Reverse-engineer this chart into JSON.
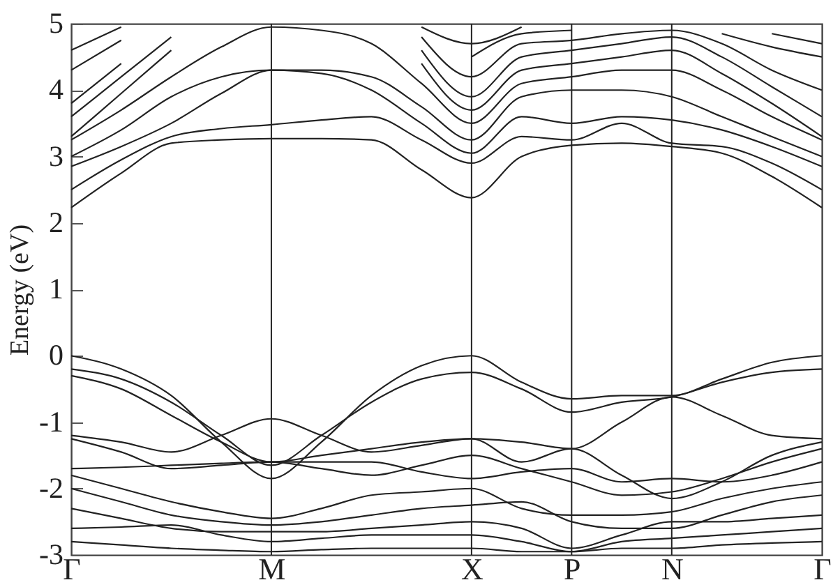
{
  "chart_data": {
    "type": "line",
    "ylabel": "Energy (eV)",
    "categories": [
      "Γ",
      null,
      null,
      null,
      "M",
      null,
      null,
      null,
      "X",
      null,
      "P",
      null,
      "N",
      null,
      null,
      "Γ"
    ],
    "ylim": [
      -3,
      5
    ],
    "yticks": [
      -3,
      -2,
      -1,
      0,
      1,
      2,
      3,
      4,
      5
    ],
    "grid": false,
    "legend": false,
    "marker": "none",
    "line_style": "solid",
    "ref_lines": [
      {
        "axis": "x",
        "value": "M",
        "color": "#222222"
      },
      {
        "axis": "x",
        "value": "X",
        "color": "#222222"
      },
      {
        "axis": "x",
        "value": "P",
        "color": "#222222"
      },
      {
        "axis": "x",
        "value": "N",
        "color": "#222222"
      }
    ],
    "series": [
      {
        "color": "#222222",
        "values": [
          2.23,
          2.75,
          3.2,
          3.25,
          3.27,
          3.27,
          3.25,
          2.8,
          2.38,
          3.0,
          3.17,
          3.2,
          3.15,
          3.05,
          2.7,
          2.23
        ]
      },
      {
        "color": "#222222",
        "values": [
          2.5,
          2.95,
          3.3,
          3.42,
          3.48,
          3.55,
          3.6,
          3.25,
          2.9,
          3.3,
          3.25,
          3.5,
          3.2,
          3.15,
          2.9,
          2.5
        ]
      },
      {
        "color": "#222222",
        "values": [
          2.85,
          3.15,
          3.5,
          3.95,
          4.3,
          4.25,
          4.0,
          3.5,
          3.05,
          3.6,
          3.5,
          3.6,
          3.55,
          3.4,
          3.15,
          2.85
        ]
      },
      {
        "color": "#222222",
        "values": [
          3.0,
          3.4,
          3.9,
          4.2,
          4.3,
          4.3,
          4.2,
          3.75,
          3.25,
          3.9,
          4.0,
          4.0,
          3.9,
          3.6,
          3.3,
          3.0
        ]
      },
      {
        "color": "#222222",
        "values": [
          3.25,
          3.7,
          4.2,
          4.65,
          4.95,
          4.9,
          4.7,
          4.1,
          3.5,
          4.1,
          4.2,
          4.3,
          4.3,
          4.0,
          3.6,
          3.25
        ]
      },
      {
        "color": "#222222",
        "values": [
          3.3,
          3.95,
          4.6,
          null,
          null,
          null,
          null,
          4.4,
          3.7,
          4.3,
          4.4,
          4.5,
          4.6,
          4.25,
          3.8,
          3.3
        ]
      },
      {
        "color": "#222222",
        "values": [
          3.6,
          4.2,
          4.8,
          null,
          null,
          null,
          null,
          4.6,
          3.9,
          4.5,
          4.6,
          4.7,
          4.8,
          4.5,
          4.05,
          3.6
        ]
      },
      {
        "color": "#222222",
        "values": [
          3.8,
          4.4,
          null,
          null,
          null,
          null,
          null,
          4.8,
          4.2,
          4.7,
          4.75,
          4.85,
          4.9,
          4.7,
          4.3,
          4.0
        ]
      },
      {
        "color": "#222222",
        "values": [
          4.3,
          4.75,
          null,
          null,
          null,
          null,
          null,
          null,
          4.5,
          4.85,
          4.9,
          null,
          null,
          4.85,
          4.65,
          4.5
        ]
      },
      {
        "color": "#222222",
        "values": [
          4.6,
          4.95,
          null,
          null,
          null,
          null,
          null,
          4.95,
          4.7,
          4.95,
          null,
          null,
          null,
          null,
          4.85,
          4.7
        ]
      },
      {
        "color": "#222222",
        "values": [
          0.0,
          -0.2,
          -0.6,
          -1.3,
          -1.85,
          -1.3,
          -0.6,
          -0.15,
          0.0,
          -0.4,
          -0.65,
          -0.6,
          -0.6,
          -0.35,
          -0.1,
          0.0
        ]
      },
      {
        "color": "#222222",
        "values": [
          -0.2,
          -0.35,
          -0.7,
          -1.2,
          -1.65,
          -1.2,
          -0.7,
          -0.35,
          -0.25,
          -0.5,
          -0.85,
          -0.7,
          -0.62,
          -0.4,
          -0.25,
          -0.2
        ]
      },
      {
        "color": "#222222",
        "values": [
          -0.3,
          -0.5,
          -0.9,
          -1.3,
          -1.6,
          -1.5,
          -1.4,
          -1.3,
          -1.25,
          -1.3,
          -1.4,
          -1.0,
          -0.62,
          -0.9,
          -1.2,
          -1.25
        ]
      },
      {
        "color": "#222222",
        "values": [
          -1.2,
          -1.3,
          -1.45,
          -1.2,
          -0.95,
          -1.2,
          -1.45,
          -1.35,
          -1.25,
          -1.6,
          -1.4,
          -1.8,
          -2.15,
          -1.9,
          -1.5,
          -1.3
        ]
      },
      {
        "color": "#222222",
        "values": [
          -1.25,
          -1.45,
          -1.7,
          -1.65,
          -1.6,
          -1.7,
          -1.8,
          -1.65,
          -1.5,
          -1.7,
          -1.9,
          -2.1,
          -2.05,
          -1.85,
          -1.6,
          -1.4
        ]
      },
      {
        "color": "#222222",
        "values": [
          -1.7,
          -1.68,
          -1.65,
          -1.62,
          -1.6,
          -1.6,
          -1.6,
          -1.75,
          -1.85,
          -1.75,
          -1.7,
          -1.9,
          -1.85,
          -1.9,
          -1.8,
          -1.6
        ]
      },
      {
        "color": "#222222",
        "values": [
          -1.8,
          -2.0,
          -2.2,
          -2.35,
          -2.45,
          -2.3,
          -2.1,
          -2.05,
          -2.0,
          -2.3,
          -2.4,
          -2.4,
          -2.35,
          -2.15,
          -2.0,
          -1.9
        ]
      },
      {
        "color": "#222222",
        "values": [
          -2.0,
          -2.2,
          -2.4,
          -2.5,
          -2.55,
          -2.5,
          -2.4,
          -2.3,
          -2.25,
          -2.2,
          -2.5,
          -2.6,
          -2.6,
          -2.4,
          -2.2,
          -2.1
        ]
      },
      {
        "color": "#222222",
        "values": [
          -2.3,
          -2.45,
          -2.6,
          -2.65,
          -2.65,
          -2.65,
          -2.6,
          -2.55,
          -2.5,
          -2.6,
          -2.9,
          -2.7,
          -2.5,
          -2.5,
          -2.45,
          -2.4
        ]
      },
      {
        "color": "#222222",
        "values": [
          -2.6,
          -2.58,
          -2.55,
          -2.7,
          -2.8,
          -2.75,
          -2.7,
          -2.7,
          -2.7,
          -2.8,
          -2.95,
          -2.8,
          -2.75,
          -2.7,
          -2.65,
          -2.6
        ]
      },
      {
        "color": "#222222",
        "values": [
          -2.8,
          -2.85,
          -2.9,
          -2.93,
          -2.95,
          -2.92,
          -2.9,
          -2.9,
          -2.9,
          -2.95,
          -2.95,
          -2.9,
          -2.9,
          -2.85,
          -2.82,
          -2.8
        ]
      }
    ]
  }
}
